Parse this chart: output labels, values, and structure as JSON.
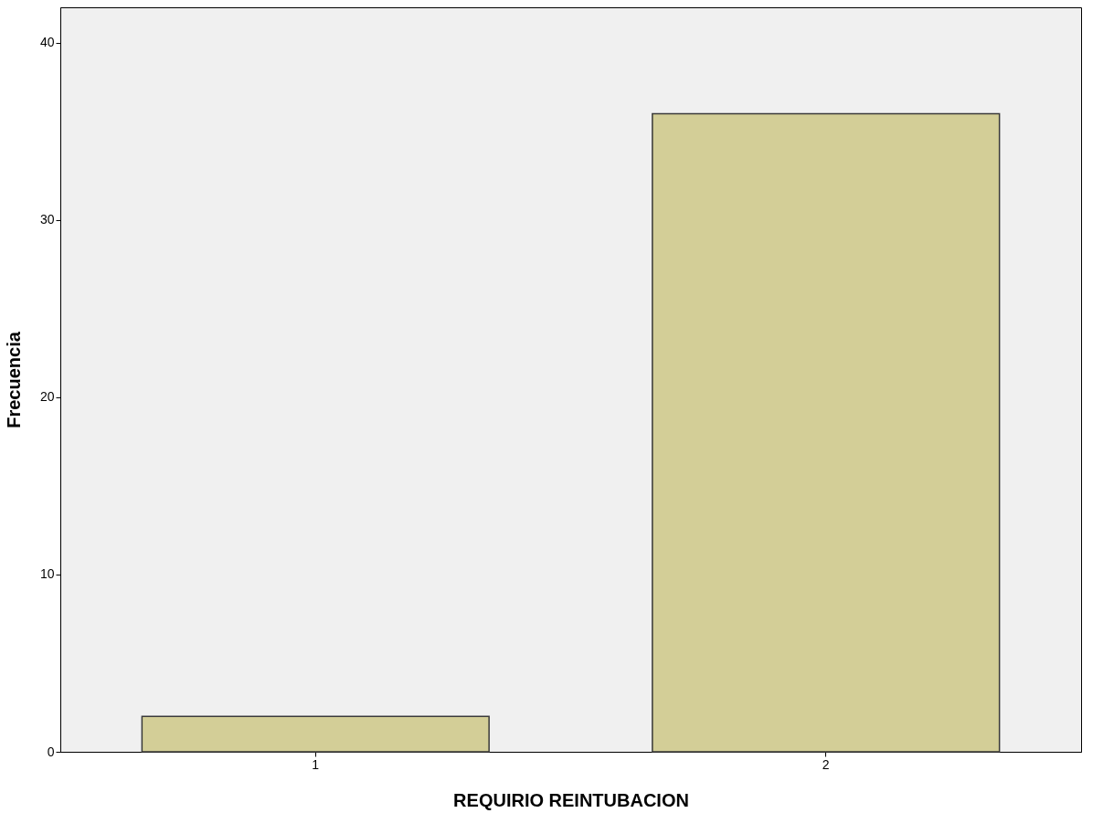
{
  "chart_data": {
    "type": "bar",
    "xlabel": "REQUIRIO REINTUBACION",
    "ylabel": "Frecuencia",
    "categories": [
      "1",
      "2"
    ],
    "values": [
      2,
      36
    ],
    "color": "#d3ce97",
    "ylim": [
      0,
      42
    ],
    "yticks": [
      0,
      10,
      20,
      30,
      40
    ],
    "grid": false
  }
}
